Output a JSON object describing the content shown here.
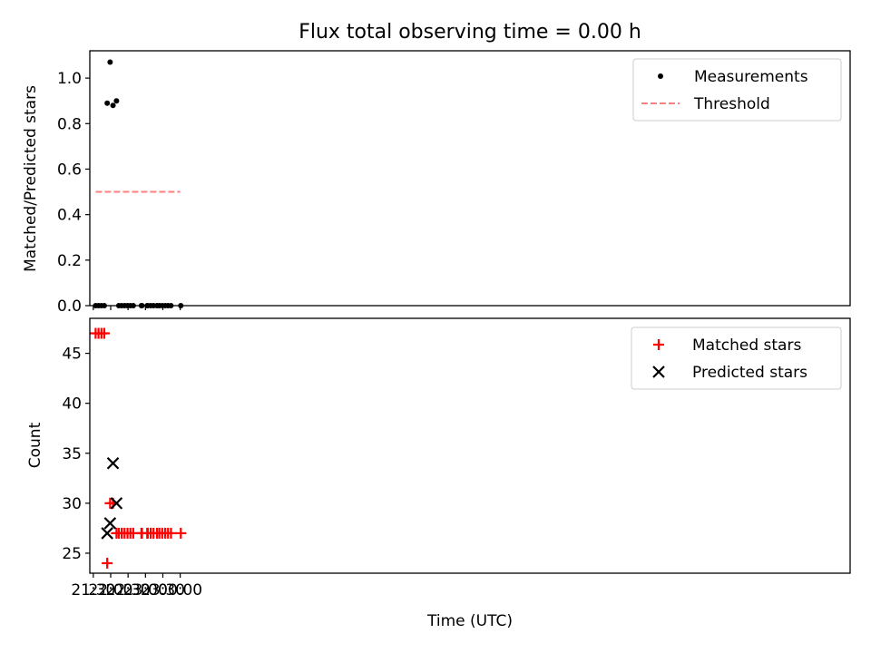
{
  "chart_data": [
    {
      "type": "scatter",
      "title": "Flux total observing time = 0.00 h",
      "xlabel": "",
      "ylabel": "Matched/Predicted stars",
      "ylim": [
        0,
        1.12
      ],
      "yticks": [
        "0.0",
        "0.2",
        "0.4",
        "0.6",
        "0.8",
        "1.0"
      ],
      "ytick_values": [
        0,
        0.2,
        0.4,
        0.6,
        0.8,
        1.0
      ],
      "xlim_minutes": [
        -6,
        1306
      ],
      "legend_position": "top-right",
      "series": [
        {
          "name": "Measurements",
          "kind": "points",
          "color": "#000000",
          "points": [
            {
              "t": "21:34",
              "y": 0.0
            },
            {
              "t": "21:39",
              "y": 0.0
            },
            {
              "t": "21:44",
              "y": 0.0
            },
            {
              "t": "21:49",
              "y": 0.0
            },
            {
              "t": "21:54",
              "y": 0.89
            },
            {
              "t": "21:59",
              "y": 1.07
            },
            {
              "t": "22:04",
              "y": 0.88
            },
            {
              "t": "22:10",
              "y": 0.9
            },
            {
              "t": "22:14",
              "y": 0.0
            },
            {
              "t": "22:19",
              "y": 0.0
            },
            {
              "t": "22:24",
              "y": 0.0
            },
            {
              "t": "22:29",
              "y": 0.0
            },
            {
              "t": "22:34",
              "y": 0.0
            },
            {
              "t": "22:39",
              "y": 0.0
            },
            {
              "t": "22:53",
              "y": 0.0
            },
            {
              "t": "22:54",
              "y": 0.0
            },
            {
              "t": "23:03",
              "y": 0.0
            },
            {
              "t": "23:04",
              "y": 0.0
            },
            {
              "t": "23:09",
              "y": 0.0
            },
            {
              "t": "23:14",
              "y": 0.0
            },
            {
              "t": "23:20",
              "y": 0.0
            },
            {
              "t": "23:24",
              "y": 0.0
            },
            {
              "t": "23:29",
              "y": 0.0
            },
            {
              "t": "23:34",
              "y": 0.0
            },
            {
              "t": "23:39",
              "y": 0.0
            },
            {
              "t": "23:44",
              "y": 0.0
            },
            {
              "t": "00:01",
              "y": 0.0
            }
          ]
        },
        {
          "name": "Threshold",
          "kind": "dashed-line",
          "color": "#ff7f7f",
          "points": [
            {
              "t": "21:34",
              "y": 0.5
            },
            {
              "t": "00:00",
              "y": 0.5
            }
          ]
        }
      ]
    },
    {
      "type": "scatter",
      "title": "",
      "xlabel": "Time (UTC)",
      "ylabel": "Count",
      "ylim": [
        23,
        48.5
      ],
      "yticks": [
        "25",
        "30",
        "35",
        "40",
        "45"
      ],
      "ytick_values": [
        25,
        30,
        35,
        40,
        45
      ],
      "xticks": [
        "21:30",
        "22:00",
        "22:30",
        "23:00",
        "23:30",
        "00:00"
      ],
      "xlim_minutes": [
        -6,
        1306
      ],
      "legend_position": "top-right",
      "series": [
        {
          "name": "Matched stars",
          "marker": "plus",
          "color": "#ff0000",
          "points": [
            {
              "t": "21:34",
              "y": 47
            },
            {
              "t": "21:39",
              "y": 47
            },
            {
              "t": "21:44",
              "y": 47
            },
            {
              "t": "21:49",
              "y": 47
            },
            {
              "t": "21:54",
              "y": 24
            },
            {
              "t": "21:59",
              "y": 30
            },
            {
              "t": "22:04",
              "y": 30
            },
            {
              "t": "22:10",
              "y": 27
            },
            {
              "t": "22:14",
              "y": 27
            },
            {
              "t": "22:19",
              "y": 27
            },
            {
              "t": "22:24",
              "y": 27
            },
            {
              "t": "22:29",
              "y": 27
            },
            {
              "t": "22:34",
              "y": 27
            },
            {
              "t": "22:39",
              "y": 27
            },
            {
              "t": "22:53",
              "y": 27
            },
            {
              "t": "22:54",
              "y": 27
            },
            {
              "t": "23:03",
              "y": 27
            },
            {
              "t": "23:04",
              "y": 27
            },
            {
              "t": "23:09",
              "y": 27
            },
            {
              "t": "23:14",
              "y": 27
            },
            {
              "t": "23:20",
              "y": 27
            },
            {
              "t": "23:24",
              "y": 27
            },
            {
              "t": "23:29",
              "y": 27
            },
            {
              "t": "23:34",
              "y": 27
            },
            {
              "t": "23:39",
              "y": 27
            },
            {
              "t": "23:44",
              "y": 27
            },
            {
              "t": "00:01",
              "y": 27
            }
          ]
        },
        {
          "name": "Predicted stars",
          "marker": "x",
          "color": "#000000",
          "points": [
            {
              "t": "21:54",
              "y": 27
            },
            {
              "t": "21:59",
              "y": 28
            },
            {
              "t": "22:04",
              "y": 34
            },
            {
              "t": "22:10",
              "y": 30
            }
          ]
        }
      ]
    }
  ]
}
